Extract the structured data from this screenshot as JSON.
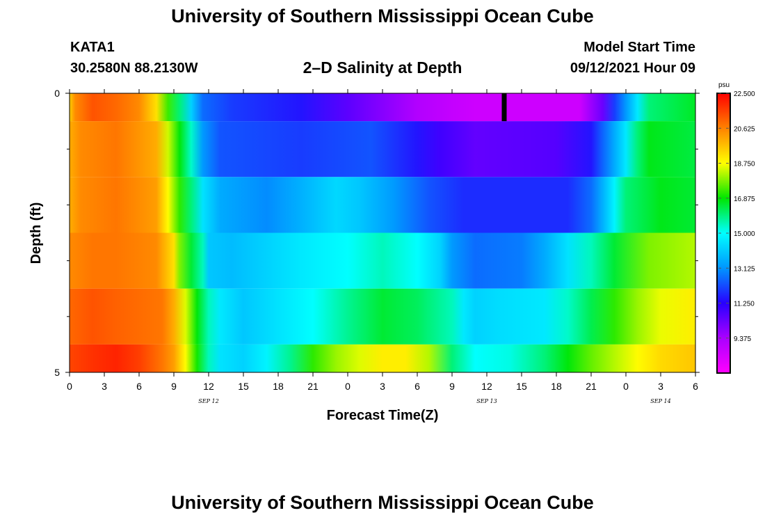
{
  "header": {
    "title": "University of Southern Mississippi Ocean Cube",
    "station": "KATA1",
    "coords": "30.2580N  88.2130W",
    "subtitle": "2–D Salinity at Depth",
    "start_label": "Model Start Time",
    "start_value": "09/12/2021 Hour 09"
  },
  "footer": {
    "title": "University of Southern Mississippi Ocean Cube"
  },
  "chart_data": {
    "type": "heatmap",
    "title": "2–D Salinity at Depth",
    "xlabel": "Forecast Time(Z)",
    "ylabel": "Depth (ft)",
    "x_tick_labels": [
      "0",
      "3",
      "6",
      "9",
      "12",
      "15",
      "18",
      "21",
      "0",
      "3",
      "6",
      "9",
      "12",
      "15",
      "18",
      "21",
      "0",
      "3",
      "6"
    ],
    "x_date_labels": [
      {
        "label": "SEP 12",
        "at_tick": 4
      },
      {
        "label": "SEP 13",
        "at_tick": 12
      },
      {
        "label": "SEP 14",
        "at_tick": 17
      }
    ],
    "y_tick_labels": [
      {
        "label": "0",
        "value": 0
      },
      {
        "label": "5",
        "value": 5
      }
    ],
    "ylim": [
      0,
      5
    ],
    "y_minor_ticks": [
      1,
      2,
      3,
      4
    ],
    "x_hours_range": [
      0,
      54
    ],
    "colorbar": {
      "unit": "psu",
      "min": 7.5,
      "max": 22.5,
      "labels": [
        "22.500",
        "20.625",
        "18.750",
        "16.875",
        "15.000",
        "13.125",
        "11.250",
        "9.375"
      ]
    },
    "depth_layers": [
      {
        "top": 0.0,
        "bottom": 0.5,
        "profile": [
          [
            0,
            19.5
          ],
          [
            0.5,
            20.5
          ],
          [
            2,
            21.3
          ],
          [
            4,
            21.0
          ],
          [
            6,
            20.5
          ],
          [
            7.5,
            19.2
          ],
          [
            8.5,
            17.3
          ],
          [
            9.5,
            16.0
          ],
          [
            10.5,
            14.2
          ],
          [
            11.5,
            12.6
          ],
          [
            14,
            12.0
          ],
          [
            20,
            11.5
          ],
          [
            24,
            10.5
          ],
          [
            30,
            9.2
          ],
          [
            33,
            8.8
          ],
          [
            35,
            8.6
          ],
          [
            44,
            8.6
          ],
          [
            46,
            10.3
          ],
          [
            47,
            12.0
          ],
          [
            48,
            13.2
          ],
          [
            49,
            14.6
          ],
          [
            50,
            16.0
          ],
          [
            54,
            16.6
          ]
        ]
      },
      {
        "top": 0.5,
        "bottom": 1.5,
        "profile": [
          [
            0,
            20.0
          ],
          [
            1,
            20.5
          ],
          [
            4,
            20.8
          ],
          [
            7.5,
            20.0
          ],
          [
            8.5,
            18.4
          ],
          [
            9.5,
            16.8
          ],
          [
            10.5,
            15.4
          ],
          [
            11.5,
            13.2
          ],
          [
            13,
            12.3
          ],
          [
            20,
            12.0
          ],
          [
            26,
            12.3
          ],
          [
            30,
            11.5
          ],
          [
            32,
            10.9
          ],
          [
            35,
            10.4
          ],
          [
            42,
            10.6
          ],
          [
            45,
            11.5
          ],
          [
            46,
            12.5
          ],
          [
            47,
            13.5
          ],
          [
            48,
            14.6
          ],
          [
            49,
            16.0
          ],
          [
            50,
            16.7
          ],
          [
            54,
            16.4
          ]
        ]
      },
      {
        "top": 1.5,
        "bottom": 2.5,
        "profile": [
          [
            0,
            20.0
          ],
          [
            1,
            20.5
          ],
          [
            4,
            20.8
          ],
          [
            7.5,
            20.2
          ],
          [
            8.5,
            18.8
          ],
          [
            9.5,
            17.2
          ],
          [
            10.5,
            16.0
          ],
          [
            11.5,
            14.5
          ],
          [
            13,
            13.5
          ],
          [
            17,
            13.0
          ],
          [
            20,
            13.6
          ],
          [
            23,
            14.3
          ],
          [
            25,
            14.0
          ],
          [
            28,
            13.2
          ],
          [
            31,
            12.3
          ],
          [
            34,
            11.8
          ],
          [
            43,
            11.8
          ],
          [
            45,
            12.6
          ],
          [
            46,
            13.6
          ],
          [
            47,
            14.8
          ],
          [
            48,
            16.0
          ],
          [
            51,
            16.7
          ],
          [
            54,
            16.5
          ]
        ]
      },
      {
        "top": 2.5,
        "bottom": 3.5,
        "profile": [
          [
            0,
            20.5
          ],
          [
            2,
            20.8
          ],
          [
            4,
            20.8
          ],
          [
            7.5,
            20.5
          ],
          [
            9,
            19.2
          ],
          [
            9.5,
            17.8
          ],
          [
            10.5,
            16.5
          ],
          [
            11.5,
            15.5
          ],
          [
            12,
            14.0
          ],
          [
            14,
            13.8
          ],
          [
            17,
            14.2
          ],
          [
            20,
            14.6
          ],
          [
            24,
            15.0
          ],
          [
            27,
            15.5
          ],
          [
            30,
            15.0
          ],
          [
            32,
            14.2
          ],
          [
            33,
            13.2
          ],
          [
            35,
            12.6
          ],
          [
            39,
            12.8
          ],
          [
            41,
            13.5
          ],
          [
            43,
            14.5
          ],
          [
            45,
            15.5
          ],
          [
            47,
            16.5
          ],
          [
            50,
            17.8
          ],
          [
            54,
            18.2
          ]
        ]
      },
      {
        "top": 3.5,
        "bottom": 4.5,
        "profile": [
          [
            0,
            21.0
          ],
          [
            2,
            21.3
          ],
          [
            4,
            21.1
          ],
          [
            8,
            20.8
          ],
          [
            9,
            20.0
          ],
          [
            10,
            18.5
          ],
          [
            11,
            16.8
          ],
          [
            12,
            15.5
          ],
          [
            13,
            14.6
          ],
          [
            15,
            14.0
          ],
          [
            18,
            14.5
          ],
          [
            21,
            15.0
          ],
          [
            24,
            15.8
          ],
          [
            27,
            16.5
          ],
          [
            30,
            16.2
          ],
          [
            33,
            15.5
          ],
          [
            34,
            14.6
          ],
          [
            35,
            14.2
          ],
          [
            37,
            14.4
          ],
          [
            41,
            14.6
          ],
          [
            43,
            15.4
          ],
          [
            45,
            16.3
          ],
          [
            47,
            17.2
          ],
          [
            49,
            18.0
          ],
          [
            51,
            18.6
          ],
          [
            54,
            19.0
          ]
        ]
      },
      {
        "top": 4.5,
        "bottom": 5.0,
        "profile": [
          [
            0,
            21.5
          ],
          [
            2,
            21.8
          ],
          [
            4,
            22.0
          ],
          [
            6,
            21.6
          ],
          [
            8,
            20.8
          ],
          [
            9,
            20.2
          ],
          [
            10,
            18.8
          ],
          [
            11,
            17.0
          ],
          [
            12,
            15.5
          ],
          [
            13,
            14.5
          ],
          [
            15,
            14.2
          ],
          [
            17,
            14.8
          ],
          [
            19,
            15.8
          ],
          [
            21,
            17.2
          ],
          [
            23,
            18.0
          ],
          [
            25,
            18.5
          ],
          [
            27,
            19.0
          ],
          [
            29,
            19.0
          ],
          [
            31,
            18.2
          ],
          [
            33,
            16.0
          ],
          [
            35,
            15.0
          ],
          [
            38,
            15.2
          ],
          [
            41,
            16.0
          ],
          [
            43,
            16.8
          ],
          [
            45,
            17.6
          ],
          [
            47,
            18.2
          ],
          [
            49,
            18.8
          ],
          [
            51,
            19.3
          ],
          [
            54,
            19.6
          ]
        ]
      }
    ],
    "marker": {
      "hour": 37.5,
      "depth_from": 0,
      "depth_to": 0.5,
      "color": "#000000"
    }
  }
}
